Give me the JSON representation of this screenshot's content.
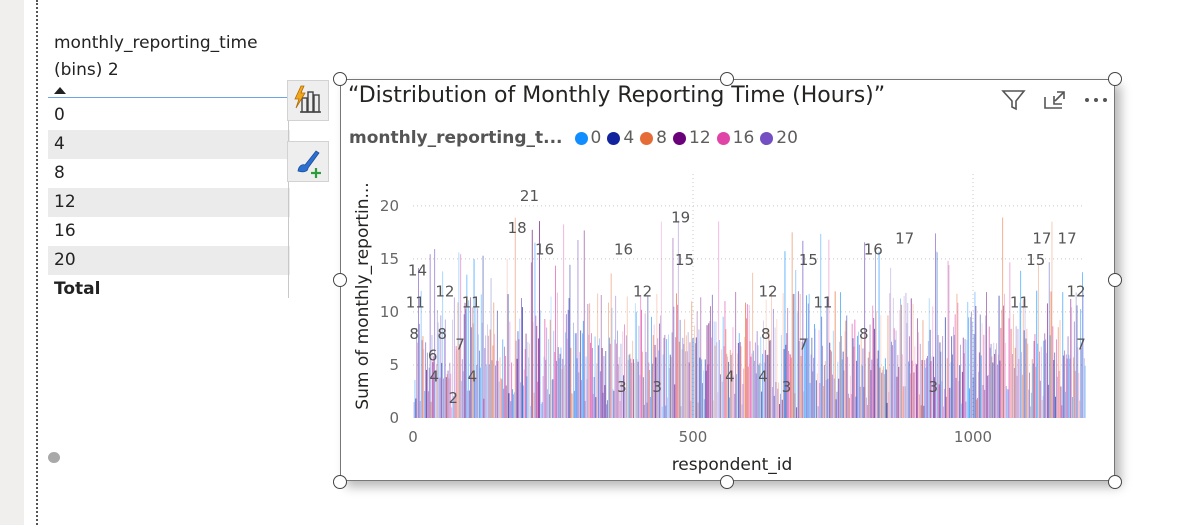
{
  "table": {
    "header_line1": "monthly_reporting_time",
    "header_line2": "(bins) 2",
    "rows": [
      "0",
      "4",
      "8",
      "12",
      "16",
      "20"
    ],
    "total_label": "Total"
  },
  "chart_title": "“Distribution of Monthly Reporting Time (Hours)”",
  "legend": {
    "title": "monthly_reporting_t...",
    "items": [
      {
        "label": "0",
        "color": "#118dff"
      },
      {
        "label": "4",
        "color": "#12239e"
      },
      {
        "label": "8",
        "color": "#e66c37"
      },
      {
        "label": "12",
        "color": "#6b007b"
      },
      {
        "label": "16",
        "color": "#e044a7"
      },
      {
        "label": "20",
        "color": "#744ec2"
      }
    ]
  },
  "header_icons": [
    "filter-icon",
    "focus-mode-icon",
    "more-options-icon"
  ],
  "floating_buttons": [
    "copilot-visual-icon",
    "format-visual-icon"
  ],
  "chart_data": {
    "type": "bar",
    "title": "“Distribution of Monthly Reporting Time (Hours)”",
    "xlabel": "respondent_id",
    "ylabel": "Sum of monthly_reportin...",
    "xlim": [
      0,
      1200
    ],
    "ylim": [
      0,
      23
    ],
    "x_ticks": [
      "0",
      "500",
      "1000"
    ],
    "y_ticks": [
      "0",
      "5",
      "10",
      "15",
      "20"
    ],
    "grid": true,
    "series": [
      {
        "name": "0",
        "color": "#118dff"
      },
      {
        "name": "4",
        "color": "#12239e"
      },
      {
        "name": "8",
        "color": "#e66c37"
      },
      {
        "name": "12",
        "color": "#6b007b"
      },
      {
        "name": "16",
        "color": "#e044a7"
      },
      {
        "name": "20",
        "color": "#744ec2"
      }
    ],
    "data_labels": [
      {
        "x": 8,
        "value": 14
      },
      {
        "x": 4,
        "value": 11
      },
      {
        "x": 2,
        "value": 8
      },
      {
        "x": 35,
        "value": 6
      },
      {
        "x": 38,
        "value": 4
      },
      {
        "x": 57,
        "value": 12
      },
      {
        "x": 52,
        "value": 8
      },
      {
        "x": 84,
        "value": 7
      },
      {
        "x": 72,
        "value": 2
      },
      {
        "x": 104,
        "value": 11
      },
      {
        "x": 106,
        "value": 4
      },
      {
        "x": 208,
        "value": 21
      },
      {
        "x": 186,
        "value": 18
      },
      {
        "x": 235,
        "value": 16
      },
      {
        "x": 376,
        "value": 16
      },
      {
        "x": 373,
        "value": 3
      },
      {
        "x": 410,
        "value": 12
      },
      {
        "x": 436,
        "value": 3
      },
      {
        "x": 478,
        "value": 19
      },
      {
        "x": 485,
        "value": 15
      },
      {
        "x": 566,
        "value": 4
      },
      {
        "x": 625,
        "value": 4
      },
      {
        "x": 634,
        "value": 12
      },
      {
        "x": 630,
        "value": 8
      },
      {
        "x": 667,
        "value": 3
      },
      {
        "x": 697,
        "value": 7
      },
      {
        "x": 706,
        "value": 15
      },
      {
        "x": 732,
        "value": 11
      },
      {
        "x": 805,
        "value": 8
      },
      {
        "x": 822,
        "value": 16
      },
      {
        "x": 878,
        "value": 17
      },
      {
        "x": 929,
        "value": 3
      },
      {
        "x": 1083,
        "value": 11
      },
      {
        "x": 1112,
        "value": 15
      },
      {
        "x": 1123,
        "value": 17
      },
      {
        "x": 1168,
        "value": 17
      },
      {
        "x": 1184,
        "value": 12
      },
      {
        "x": 1193,
        "value": 7
      }
    ]
  }
}
